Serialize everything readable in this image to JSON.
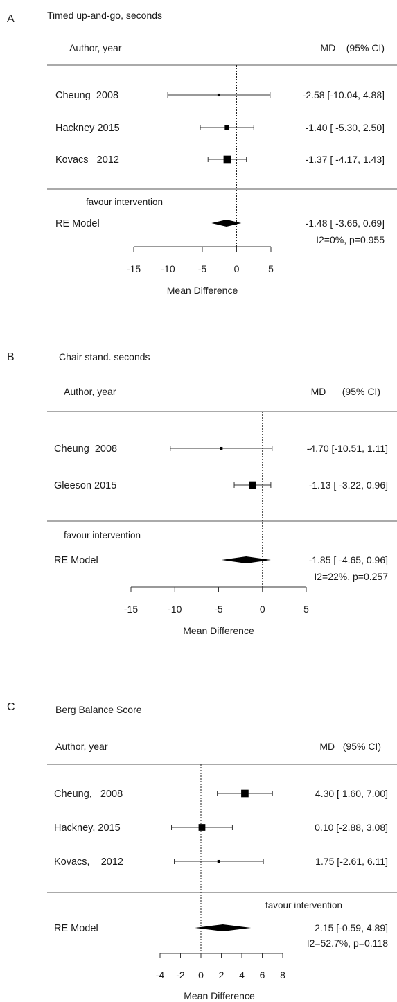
{
  "chart_data": [
    {
      "type": "forest",
      "panel_letter": "A",
      "title": "Timed up-and-go, seconds",
      "header_left": "Author, year",
      "header_right": "MD    (95% CI)",
      "xlabel": "Mean Difference",
      "xlim": [
        -15,
        5
      ],
      "xticks": [
        -15,
        -10,
        -5,
        0,
        5
      ],
      "null_line": 0,
      "studies": [
        {
          "name": "Cheung  2008",
          "md": -2.58,
          "lower": -10.04,
          "upper": 4.88,
          "ci_text": "-2.58 [-10.04, 4.88]",
          "weight": 0.12
        },
        {
          "name": "Hackney 2015",
          "md": -1.4,
          "lower": -5.3,
          "upper": 2.5,
          "ci_text": "-1.40 [ -5.30, 2.50]",
          "weight": 0.4
        },
        {
          "name": "Kovacs   2012",
          "md": -1.37,
          "lower": -4.17,
          "upper": 1.43,
          "ci_text": "-1.37 [ -4.17, 1.43]",
          "weight": 0.85
        }
      ],
      "favour_label": "favour intervention",
      "summary": {
        "name": "RE Model",
        "md": -1.48,
        "lower": -3.66,
        "upper": 0.69,
        "ci_text": "-1.48 [ -3.66, 0.69]",
        "het_text": "I2=0%, p=0.955"
      }
    },
    {
      "type": "forest",
      "panel_letter": "B",
      "title": "Chair stand. seconds",
      "header_left": "Author, year",
      "header_right": "MD      (95% CI)",
      "xlabel": "Mean Difference",
      "xlim": [
        -15,
        5
      ],
      "xticks": [
        -15,
        -10,
        -5,
        0,
        5
      ],
      "null_line": 0,
      "studies": [
        {
          "name": "Cheung  2008",
          "md": -4.7,
          "lower": -10.51,
          "upper": 1.11,
          "ci_text": "-4.70 [-10.51, 1.11]",
          "weight": 0.12
        },
        {
          "name": "Gleeson 2015",
          "md": -1.13,
          "lower": -3.22,
          "upper": 0.96,
          "ci_text": "-1.13 [ -3.22, 0.96]",
          "weight": 0.85
        }
      ],
      "favour_label": "favour intervention",
      "summary": {
        "name": "RE Model",
        "md": -1.85,
        "lower": -4.65,
        "upper": 0.96,
        "ci_text": "-1.85 [ -4.65, 0.96]",
        "het_text": "I2=22%, p=0.257"
      }
    },
    {
      "type": "forest",
      "panel_letter": "C",
      "title": "Berg Balance Score",
      "header_left": "Author, year",
      "header_right": "MD   (95% CI)",
      "xlabel": "Mean Difference",
      "xlim": [
        -4,
        8
      ],
      "xticks": [
        -4,
        -2,
        0,
        2,
        4,
        6,
        8
      ],
      "null_line": 0,
      "studies": [
        {
          "name": "Cheung,   2008",
          "md": 4.3,
          "lower": 1.6,
          "upper": 7.0,
          "ci_text": "4.30 [ 1.60, 7.00]",
          "weight": 0.85
        },
        {
          "name": "Hackney, 2015",
          "md": 0.1,
          "lower": -2.88,
          "upper": 3.08,
          "ci_text": "0.10 [-2.88, 3.08]",
          "weight": 0.75
        },
        {
          "name": "Kovacs,    2012",
          "md": 1.75,
          "lower": -2.61,
          "upper": 6.11,
          "ci_text": "1.75 [-2.61, 6.11]",
          "weight": 0.12
        }
      ],
      "favour_label": "favour intervention",
      "summary": {
        "name": "RE Model",
        "md": 2.15,
        "lower": -0.59,
        "upper": 4.89,
        "ci_text": "2.15 [-0.59, 4.89]",
        "het_text": "I2=52.7%, p=0.118"
      }
    }
  ]
}
